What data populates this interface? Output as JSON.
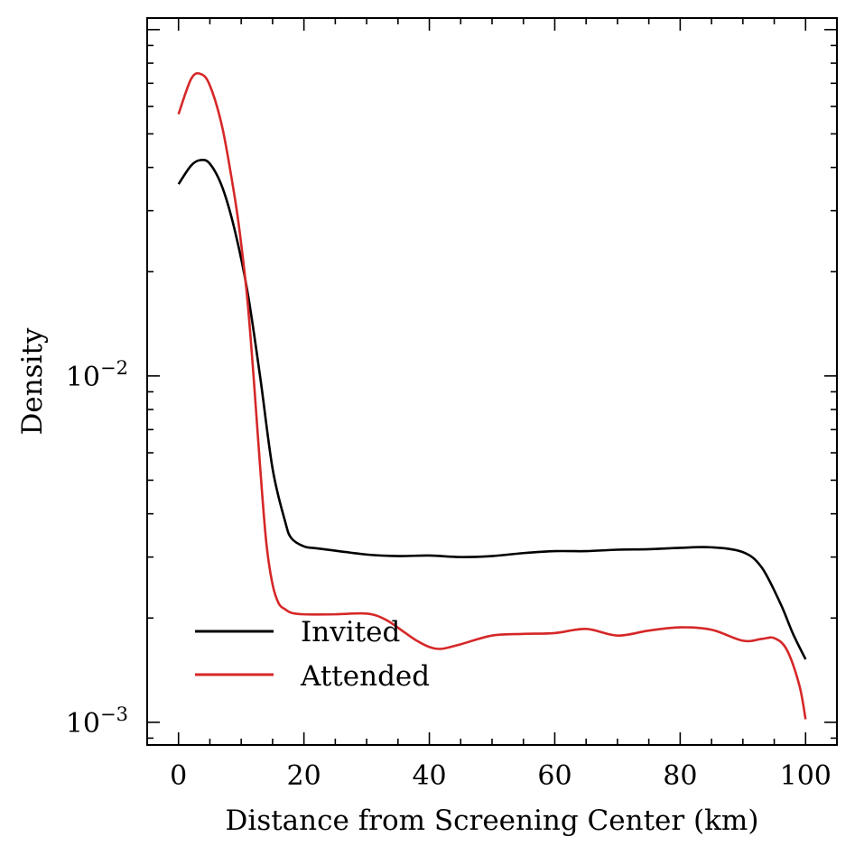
{
  "chart_data": {
    "type": "line",
    "title": "",
    "xlabel": "Distance from Screening Center (km)",
    "ylabel": "Density",
    "xlim": [
      -5,
      105
    ],
    "ylim": [
      0.00086,
      0.108
    ],
    "yscale": "log",
    "grid": false,
    "legend_position": "lower-left",
    "x_ticks": [
      {
        "value": 0,
        "label": "0"
      },
      {
        "value": 20,
        "label": "20"
      },
      {
        "value": 40,
        "label": "40"
      },
      {
        "value": 60,
        "label": "60"
      },
      {
        "value": 80,
        "label": "80"
      },
      {
        "value": 100,
        "label": "100"
      }
    ],
    "y_ticks": [
      {
        "value": 0.01,
        "base": "10",
        "exponent": "−2"
      },
      {
        "value": 0.001,
        "base": "10",
        "exponent": "−3"
      }
    ],
    "series": [
      {
        "name": "Invited",
        "color": "#000000",
        "x": [
          0,
          2,
          3.5,
          5,
          7,
          9,
          11,
          13,
          15,
          17,
          18,
          20,
          22,
          25,
          30,
          35,
          40,
          45,
          50,
          55,
          60,
          65,
          70,
          75,
          80,
          85,
          90,
          93,
          96,
          98,
          100
        ],
        "y": [
          0.0358,
          0.0405,
          0.042,
          0.041,
          0.035,
          0.0262,
          0.0175,
          0.01,
          0.0054,
          0.0038,
          0.0034,
          0.00322,
          0.00318,
          0.00313,
          0.00305,
          0.00302,
          0.00303,
          0.003,
          0.00302,
          0.00308,
          0.00312,
          0.00312,
          0.00315,
          0.00316,
          0.00319,
          0.0032,
          0.0031,
          0.0028,
          0.0022,
          0.0018,
          0.00152
        ]
      },
      {
        "name": "Attended",
        "color": "#d62728",
        "x": [
          0,
          2,
          3.5,
          5,
          7,
          9,
          10,
          11,
          12,
          13,
          14,
          15,
          16,
          17,
          18,
          20,
          25,
          30,
          33,
          36,
          38,
          40,
          42,
          45,
          50,
          55,
          60,
          65,
          70,
          75,
          80,
          85,
          90,
          93,
          95,
          97,
          99,
          100
        ],
        "y": [
          0.057,
          0.072,
          0.0745,
          0.069,
          0.052,
          0.0325,
          0.024,
          0.0165,
          0.0098,
          0.0055,
          0.0033,
          0.0025,
          0.0022,
          0.00212,
          0.00207,
          0.00205,
          0.00205,
          0.00206,
          0.00198,
          0.00182,
          0.00172,
          0.00165,
          0.00163,
          0.00168,
          0.00178,
          0.0018,
          0.00181,
          0.00186,
          0.00178,
          0.00184,
          0.00188,
          0.00185,
          0.00172,
          0.00174,
          0.00175,
          0.00162,
          0.00128,
          0.00102
        ]
      }
    ]
  }
}
